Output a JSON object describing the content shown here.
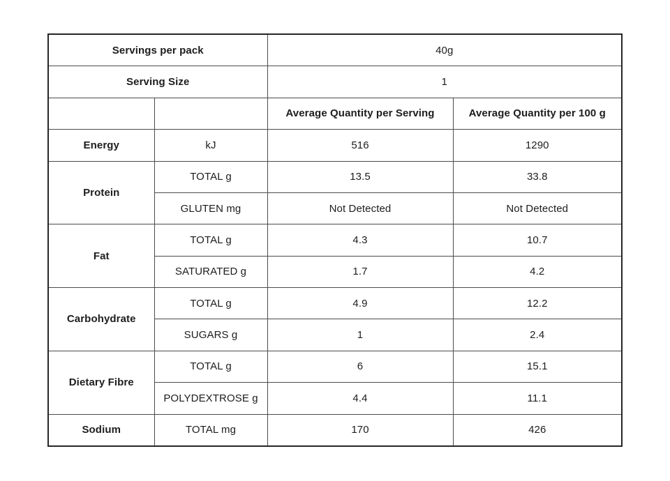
{
  "table": {
    "meta_rows": [
      {
        "label": "Servings per pack",
        "value": "40g"
      },
      {
        "label": "Serving Size",
        "value": "1"
      }
    ],
    "column_headers": {
      "per_serving": "Average Quantity per Serving",
      "per_100g": "Average Quantity per 100 g"
    },
    "nutrients": [
      {
        "name": "Energy",
        "rows": [
          {
            "component": "kJ",
            "per_serving": "516",
            "per_100g": "1290"
          }
        ]
      },
      {
        "name": "Protein",
        "rows": [
          {
            "component": "TOTAL g",
            "per_serving": "13.5",
            "per_100g": "33.8"
          },
          {
            "component": "GLUTEN mg",
            "per_serving": "Not Detected",
            "per_100g": "Not Detected"
          }
        ]
      },
      {
        "name": "Fat",
        "rows": [
          {
            "component": "TOTAL g",
            "per_serving": "4.3",
            "per_100g": "10.7"
          },
          {
            "component": "SATURATED g",
            "per_serving": "1.7",
            "per_100g": "4.2"
          }
        ]
      },
      {
        "name": "Carbohydrate",
        "rows": [
          {
            "component": "TOTAL g",
            "per_serving": "4.9",
            "per_100g": "12.2"
          },
          {
            "component": "SUGARS g",
            "per_serving": "1",
            "per_100g": "2.4"
          }
        ]
      },
      {
        "name": "Dietary Fibre",
        "rows": [
          {
            "component": "TOTAL g",
            "per_serving": "6",
            "per_100g": "15.1"
          },
          {
            "component": "POLYDEXTROSE g",
            "per_serving": "4.4",
            "per_100g": "11.1"
          }
        ]
      },
      {
        "name": "Sodium",
        "rows": [
          {
            "component": "TOTAL mg",
            "per_serving": "170",
            "per_100g": "426"
          }
        ]
      }
    ],
    "colors": {
      "background": "#ffffff",
      "outer_border": "#262626",
      "inner_border": "#4b4b4b",
      "text": "#1d1d1d"
    }
  }
}
